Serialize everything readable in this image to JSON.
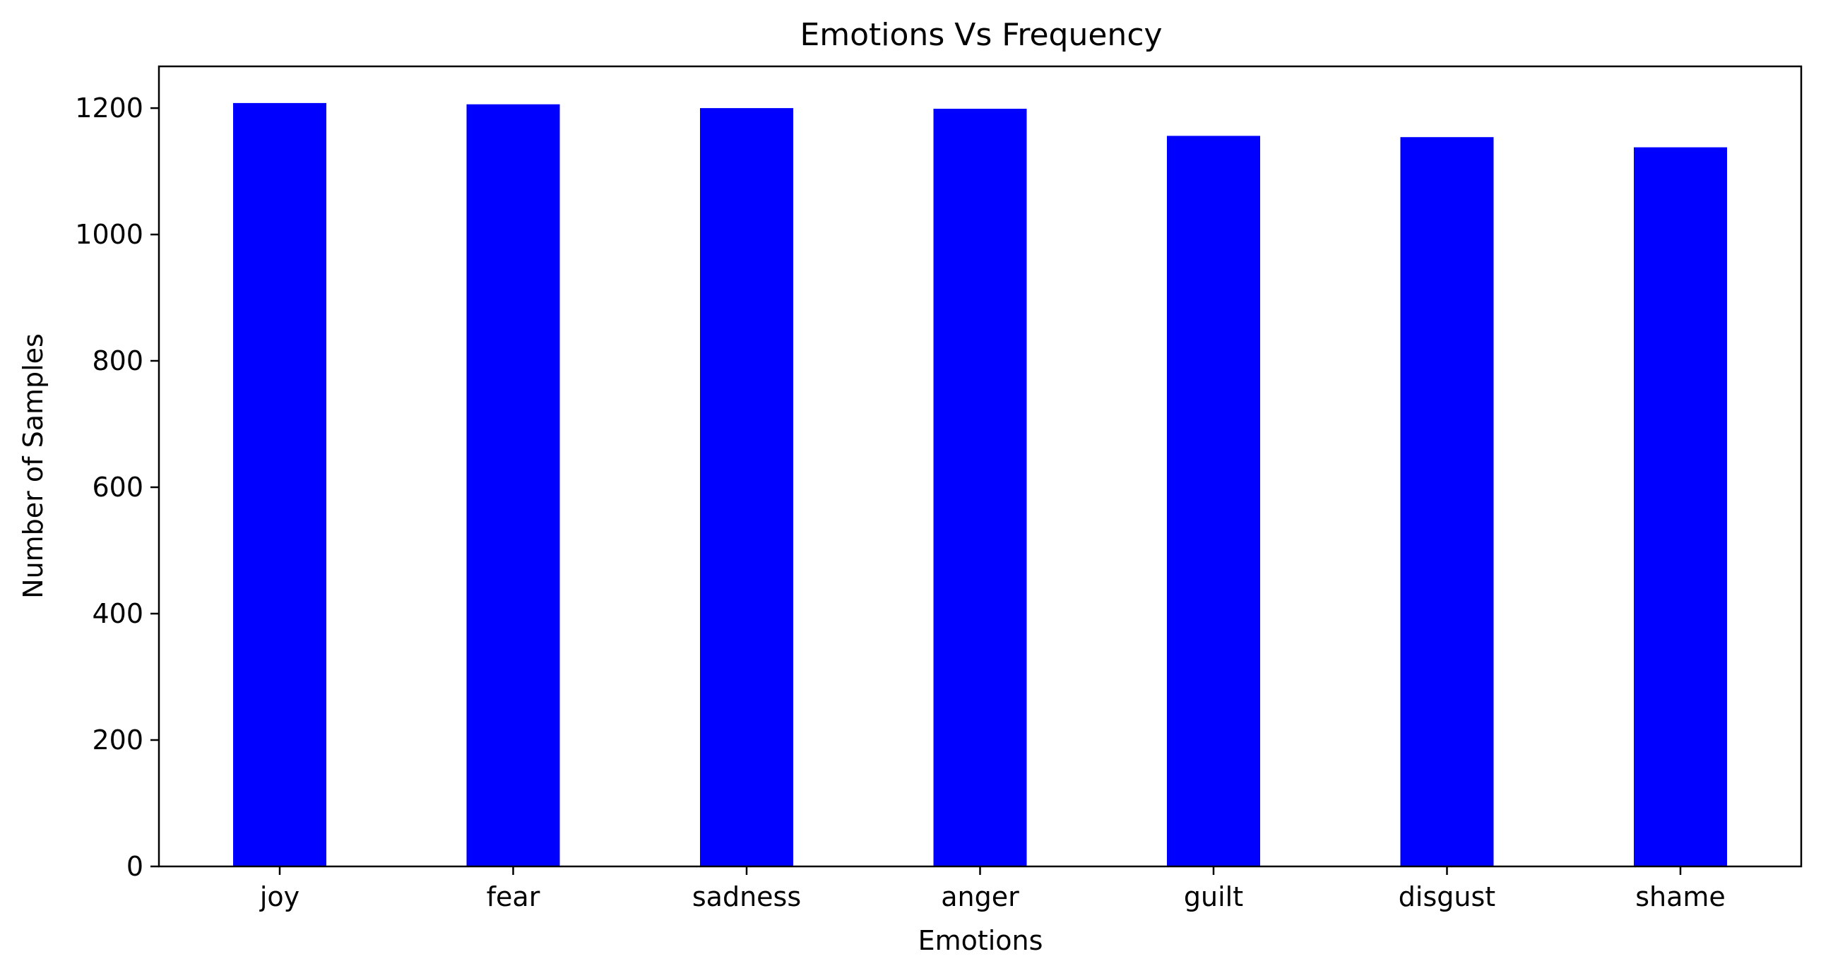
{
  "chart_data": {
    "type": "bar",
    "title": "Emotions Vs Frequency",
    "xlabel": "Emotions",
    "ylabel": "Number of Samples",
    "categories": [
      "joy",
      "fear",
      "sadness",
      "anger",
      "guilt",
      "disgust",
      "shame"
    ],
    "values": [
      1208,
      1206,
      1200,
      1199,
      1156,
      1154,
      1138
    ],
    "ylim": [
      0,
      1266
    ],
    "yticks": [
      0,
      200,
      400,
      600,
      800,
      1000,
      1200
    ],
    "grid": false,
    "legend": "none",
    "bar_color": "#0000ff",
    "axis_color": "#000000"
  }
}
